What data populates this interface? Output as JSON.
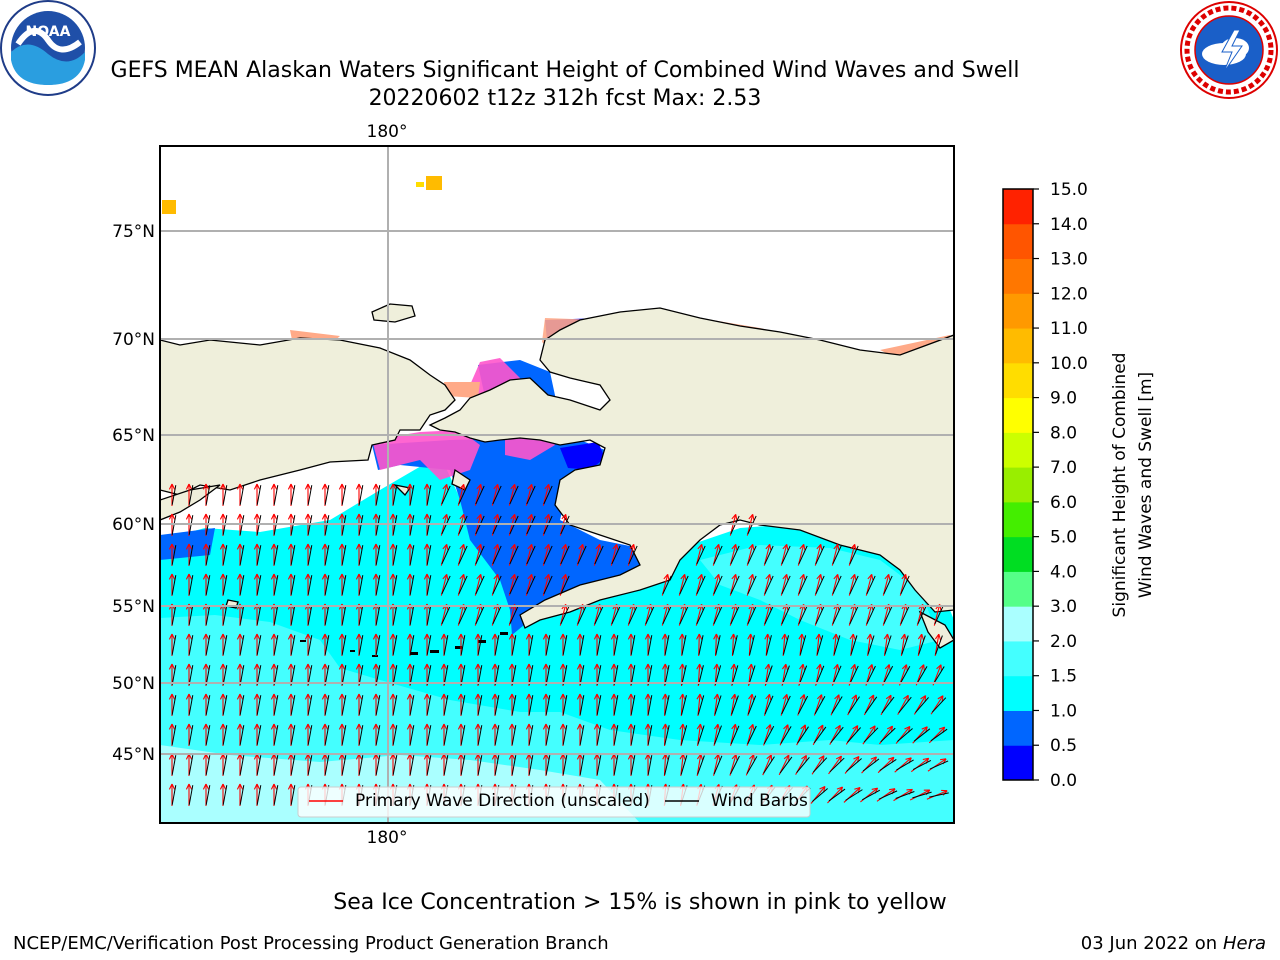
{
  "header": {
    "title_line1": "GEFS MEAN Alaskan Waters Significant Height of Combined Wind Waves and Swell",
    "title_line2": "20220602 t12z 312h fcst   Max: 2.53"
  },
  "logos": {
    "noaa_text": "NOAA",
    "noaa_ring_text": "NATIONAL OCEANIC AND ATMOSPHERIC ADMINISTRATION · U.S. DEPARTMENT OF COMMERCE",
    "nws_ring_text": "NATIONAL WEATHER SERVICE"
  },
  "chart_data": {
    "type": "heatmap",
    "title": "GEFS MEAN Alaskan Waters Significant Height of Combined Wind Waves and Swell",
    "subtitle": "20220602 t12z 312h fcst   Max: 2.53",
    "x_tick_labels": [
      "180°"
    ],
    "y_tick_labels": [
      "75°N",
      "70°N",
      "65°N",
      "60°N",
      "55°N",
      "50°N",
      "45°N"
    ],
    "colorbar": {
      "label": "Significant Height of Combined Wind Waves and Swell [m]",
      "label_line1": "Significant Height of Combined",
      "label_line2": "Wind Waves and Swell [m]",
      "ticks": [
        "0.0",
        "0.5",
        "1.0",
        "1.5",
        "2.0",
        "3.0",
        "4.0",
        "5.0",
        "6.0",
        "7.0",
        "8.0",
        "9.0",
        "10.0",
        "11.0",
        "12.0",
        "13.0",
        "14.0",
        "15.0"
      ],
      "colors": [
        "#0000ff",
        "#0066ff",
        "#00ffff",
        "#44ffff",
        "#aaffff",
        "#55ff88",
        "#00dd22",
        "#44ee00",
        "#99ee00",
        "#ccff00",
        "#ffff00",
        "#ffdd00",
        "#ffbb00",
        "#ff9900",
        "#ff7700",
        "#ff5500",
        "#ff2200"
      ]
    },
    "legend": {
      "placement": "bottom-center",
      "entries": [
        {
          "label": "Primary Wave Direction (unscaled)",
          "color": "#ff0000"
        },
        {
          "label": "Wind Barbs",
          "color": "#000000"
        }
      ]
    },
    "grid": true,
    "land_color": "#efefdb",
    "ice_colors": [
      "#ff55cc",
      "#ffaa88",
      "#ffff44"
    ]
  },
  "footer": {
    "sea_ice_note": "Sea Ice Concentration > 15% is shown in pink to yellow",
    "credit_left": "NCEP/EMC/Verification Post Processing Product Generation Branch",
    "credit_date": "03 Jun 2022 on",
    "credit_host": "Hera"
  }
}
